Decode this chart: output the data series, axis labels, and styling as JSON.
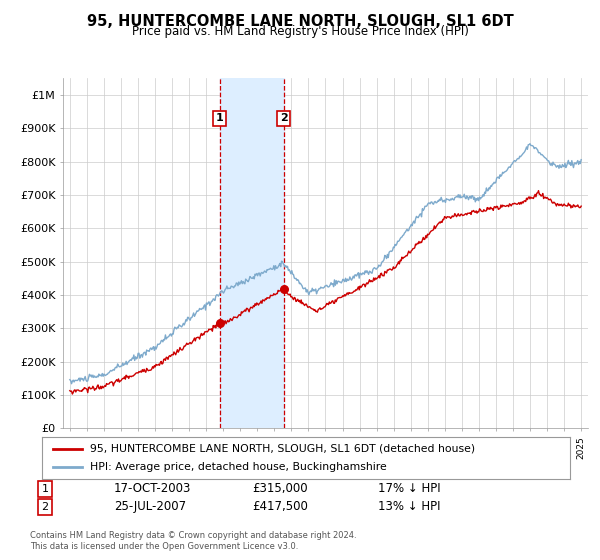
{
  "title": "95, HUNTERCOMBE LANE NORTH, SLOUGH, SL1 6DT",
  "subtitle": "Price paid vs. HM Land Registry's House Price Index (HPI)",
  "legend_line1": "95, HUNTERCOMBE LANE NORTH, SLOUGH, SL1 6DT (detached house)",
  "legend_line2": "HPI: Average price, detached house, Buckinghamshire",
  "footer1": "Contains HM Land Registry data © Crown copyright and database right 2024.",
  "footer2": "This data is licensed under the Open Government Licence v3.0.",
  "sale1_date": "17-OCT-2003",
  "sale1_price": 315000,
  "sale1_pct": "17% ↓ HPI",
  "sale2_date": "25-JUL-2007",
  "sale2_price": 417500,
  "sale2_pct": "13% ↓ HPI",
  "red_color": "#cc0000",
  "blue_color": "#7eaacc",
  "shading_color": "#ddeeff",
  "grid_color": "#cccccc",
  "background_color": "#ffffff",
  "ylim": [
    0,
    1050000
  ],
  "yticks": [
    0,
    100000,
    200000,
    300000,
    400000,
    500000,
    600000,
    700000,
    800000,
    900000,
    1000000
  ],
  "ytick_labels": [
    "£0",
    "£100K",
    "£200K",
    "£300K",
    "£400K",
    "£500K",
    "£600K",
    "£700K",
    "£800K",
    "£900K",
    "£1M"
  ],
  "sale1_x_year": 2003.79,
  "sale2_x_year": 2007.55,
  "xlim_left": 1994.6,
  "xlim_right": 2025.4
}
